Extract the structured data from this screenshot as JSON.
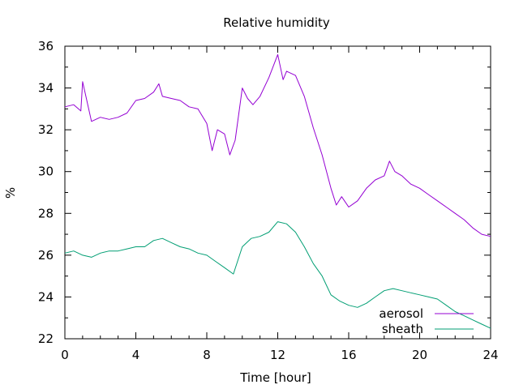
{
  "chart_data": {
    "type": "line",
    "title": "Relative humidity",
    "xlabel": "Time [hour]",
    "ylabel": "%",
    "xlim": [
      0,
      24
    ],
    "ylim": [
      22,
      36
    ],
    "xticks": [
      0,
      4,
      8,
      12,
      16,
      20,
      24
    ],
    "yticks": [
      22,
      24,
      26,
      28,
      30,
      32,
      34,
      36
    ],
    "grid": false,
    "legend_position": "bottom-right",
    "series": [
      {
        "name": "aerosol",
        "color": "#9400d3",
        "x": [
          0,
          0.5,
          0.9,
          1,
          1.5,
          2,
          2.5,
          3,
          3.5,
          4,
          4.5,
          5,
          5.3,
          5.5,
          6,
          6.5,
          7,
          7.5,
          8,
          8.3,
          8.6,
          9,
          9.3,
          9.6,
          10,
          10.3,
          10.6,
          11,
          11.5,
          12,
          12.3,
          12.5,
          13,
          13.5,
          14,
          14.5,
          15,
          15.3,
          15.6,
          16,
          16.5,
          17,
          17.5,
          18,
          18.3,
          18.6,
          19,
          19.5,
          20,
          20.5,
          21,
          21.5,
          22,
          22.5,
          23,
          23.5,
          24
        ],
        "values": [
          33.1,
          33.2,
          32.9,
          34.3,
          32.4,
          32.6,
          32.5,
          32.6,
          32.8,
          33.4,
          33.5,
          33.8,
          34.2,
          33.6,
          33.5,
          33.4,
          33.1,
          33.0,
          32.3,
          31.0,
          32.0,
          31.8,
          30.8,
          31.5,
          34.0,
          33.5,
          33.2,
          33.6,
          34.5,
          35.6,
          34.4,
          34.8,
          34.6,
          33.6,
          32.1,
          30.8,
          29.2,
          28.4,
          28.8,
          28.3,
          28.6,
          29.2,
          29.6,
          29.8,
          30.5,
          30.0,
          29.8,
          29.4,
          29.2,
          28.9,
          28.6,
          28.3,
          28.0,
          27.7,
          27.3,
          27.0,
          26.9
        ]
      },
      {
        "name": "sheath",
        "color": "#009e73",
        "x": [
          0,
          0.5,
          1,
          1.5,
          2,
          2.5,
          3,
          3.5,
          4,
          4.5,
          5,
          5.5,
          6,
          6.5,
          7,
          7.5,
          8,
          8.5,
          9,
          9.5,
          10,
          10.5,
          11,
          11.5,
          12,
          12.5,
          13,
          13.5,
          14,
          14.5,
          15,
          15.5,
          16,
          16.5,
          17,
          17.5,
          18,
          18.5,
          19,
          19.5,
          20,
          20.5,
          21,
          21.5,
          22,
          22.5,
          23,
          23.5,
          24
        ],
        "values": [
          26.1,
          26.2,
          26.0,
          25.9,
          26.1,
          26.2,
          26.2,
          26.3,
          26.4,
          26.4,
          26.7,
          26.8,
          26.6,
          26.4,
          26.3,
          26.1,
          26.0,
          25.7,
          25.4,
          25.1,
          26.4,
          26.8,
          26.9,
          27.1,
          27.6,
          27.5,
          27.1,
          26.4,
          25.6,
          25.0,
          24.1,
          23.8,
          23.6,
          23.5,
          23.7,
          24.0,
          24.3,
          24.4,
          24.3,
          24.2,
          24.1,
          24.0,
          23.9,
          23.6,
          23.3,
          23.1,
          22.9,
          22.7,
          22.5
        ]
      }
    ]
  }
}
